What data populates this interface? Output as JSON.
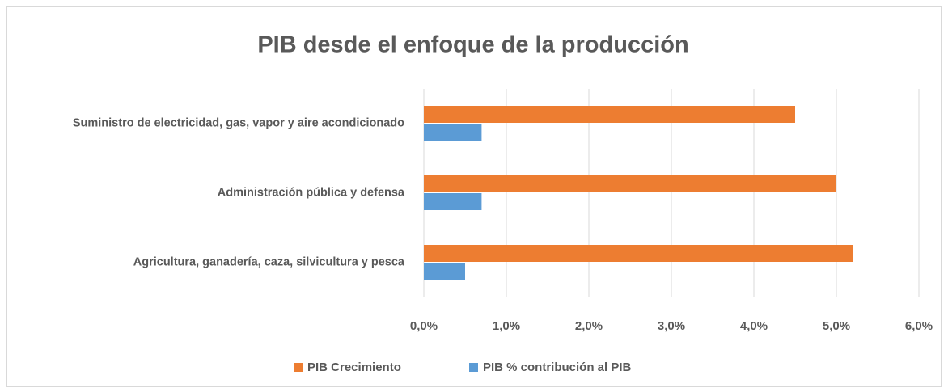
{
  "chart_data": {
    "type": "hbar",
    "title": "PIB desde el enfoque de la producción",
    "categories": [
      "Suministro de electricidad, gas, vapor y aire acondicionado",
      "Administración pública y defensa",
      "Agricultura, ganadería, caza, silvicultura y pesca"
    ],
    "series": [
      {
        "name": "PIB Crecimiento",
        "color": "#ed7d31",
        "values": [
          4.5,
          5.0,
          5.2
        ]
      },
      {
        "name": "PIB % contribución al PIB",
        "color": "#5b9bd5",
        "values": [
          0.7,
          0.7,
          0.5
        ]
      }
    ],
    "xlim": [
      0,
      6
    ],
    "xticks": [
      {
        "value": 0,
        "label": "0,0%"
      },
      {
        "value": 1,
        "label": "1,0%"
      },
      {
        "value": 2,
        "label": "2,0%"
      },
      {
        "value": 3,
        "label": "3,0%"
      },
      {
        "value": 4,
        "label": "4,0%"
      },
      {
        "value": 5,
        "label": "5,0%"
      },
      {
        "value": 6,
        "label": "6,0%"
      }
    ],
    "grid": true,
    "legend": "bottom"
  }
}
